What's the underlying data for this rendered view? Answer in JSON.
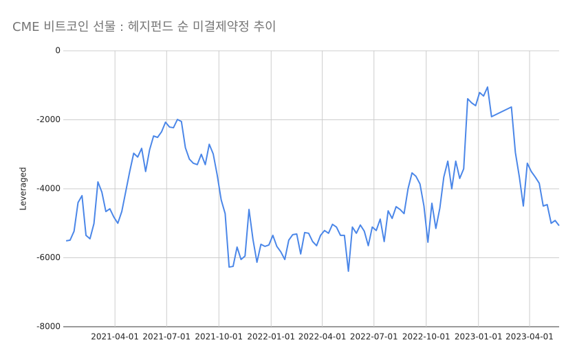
{
  "chart_data": {
    "type": "line",
    "title": "CME 비트코인 선물 : 헤지펀드 순 미결제약정 추이",
    "y_label": "Leveraged",
    "x": [
      "2021-01-05",
      "2021-01-12",
      "2021-01-19",
      "2021-01-26",
      "2021-02-02",
      "2021-02-09",
      "2021-02-16",
      "2021-02-23",
      "2021-03-02",
      "2021-03-09",
      "2021-03-16",
      "2021-03-23",
      "2021-03-30",
      "2021-04-06",
      "2021-04-13",
      "2021-04-20",
      "2021-04-27",
      "2021-05-04",
      "2021-05-11",
      "2021-05-18",
      "2021-05-25",
      "2021-06-01",
      "2021-06-08",
      "2021-06-15",
      "2021-06-22",
      "2021-06-29",
      "2021-07-06",
      "2021-07-13",
      "2021-07-20",
      "2021-07-27",
      "2021-08-03",
      "2021-08-10",
      "2021-08-17",
      "2021-08-24",
      "2021-08-31",
      "2021-09-07",
      "2021-09-14",
      "2021-09-21",
      "2021-09-28",
      "2021-10-05",
      "2021-10-12",
      "2021-10-19",
      "2021-10-26",
      "2021-11-02",
      "2021-11-09",
      "2021-11-16",
      "2021-11-23",
      "2021-11-30",
      "2021-12-07",
      "2021-12-14",
      "2021-12-21",
      "2021-12-28",
      "2022-01-04",
      "2022-01-11",
      "2022-01-18",
      "2022-01-25",
      "2022-02-01",
      "2022-02-08",
      "2022-02-15",
      "2022-02-22",
      "2022-03-01",
      "2022-03-08",
      "2022-03-15",
      "2022-03-22",
      "2022-03-29",
      "2022-04-05",
      "2022-04-12",
      "2022-04-19",
      "2022-04-26",
      "2022-05-03",
      "2022-05-10",
      "2022-05-17",
      "2022-05-24",
      "2022-05-31",
      "2022-06-07",
      "2022-06-14",
      "2022-06-21",
      "2022-06-28",
      "2022-07-05",
      "2022-07-12",
      "2022-07-19",
      "2022-07-26",
      "2022-08-02",
      "2022-08-09",
      "2022-08-16",
      "2022-08-23",
      "2022-08-30",
      "2022-09-06",
      "2022-09-13",
      "2022-09-20",
      "2022-09-27",
      "2022-10-04",
      "2022-10-11",
      "2022-10-18",
      "2022-10-25",
      "2022-11-01",
      "2022-11-08",
      "2022-11-15",
      "2022-11-22",
      "2022-11-29",
      "2022-12-06",
      "2022-12-13",
      "2022-12-20",
      "2022-12-27",
      "2023-01-03",
      "2023-01-10",
      "2023-01-17",
      "2023-01-24",
      "2023-02-28",
      "2023-03-07",
      "2023-03-14",
      "2023-03-21",
      "2023-03-28",
      "2023-04-04",
      "2023-04-11",
      "2023-04-18",
      "2023-04-25",
      "2023-05-02",
      "2023-05-09",
      "2023-05-16",
      "2023-05-23"
    ],
    "series": [
      {
        "name": "Leveraged",
        "color": "#4a86e8",
        "values": [
          -5510,
          -5490,
          -5230,
          -4400,
          -4200,
          -5350,
          -5450,
          -5010,
          -3800,
          -4100,
          -4660,
          -4580,
          -4820,
          -5000,
          -4660,
          -4080,
          -3500,
          -2970,
          -3080,
          -2830,
          -3500,
          -2870,
          -2470,
          -2510,
          -2350,
          -2070,
          -2210,
          -2230,
          -1990,
          -2050,
          -2810,
          -3140,
          -3260,
          -3300,
          -3000,
          -3300,
          -2710,
          -2990,
          -3600,
          -4320,
          -4720,
          -6270,
          -6250,
          -5690,
          -6050,
          -5950,
          -4600,
          -5470,
          -6130,
          -5610,
          -5670,
          -5630,
          -5350,
          -5670,
          -5830,
          -6050,
          -5490,
          -5330,
          -5310,
          -5890,
          -5270,
          -5290,
          -5530,
          -5650,
          -5350,
          -5210,
          -5290,
          -5030,
          -5110,
          -5350,
          -5350,
          -6390,
          -5110,
          -5290,
          -5050,
          -5230,
          -5650,
          -5110,
          -5210,
          -4880,
          -5530,
          -4640,
          -4860,
          -4520,
          -4600,
          -4720,
          -4000,
          -3540,
          -3640,
          -3860,
          -4500,
          -5550,
          -4420,
          -5150,
          -4560,
          -3660,
          -3200,
          -4000,
          -3200,
          -3700,
          -3420,
          -1390,
          -1510,
          -1590,
          -1210,
          -1310,
          -1050,
          -1910,
          -1630,
          -2950,
          -3660,
          -4500,
          -3260,
          -3500,
          -3660,
          -3840,
          -4500,
          -4460,
          -5000,
          -4920,
          -5070
        ]
      }
    ],
    "xlim": [
      "2020-12-31",
      "2023-05-23"
    ],
    "xticks": [
      "2021-04-01",
      "2021-07-01",
      "2021-10-01",
      "2022-01-01",
      "2022-04-01",
      "2022-07-01",
      "2022-10-01",
      "2023-01-01",
      "2023-04-01"
    ],
    "ylim": [
      -8000,
      0
    ],
    "yticks": [
      0,
      -2000,
      -4000,
      -6000,
      -8000
    ],
    "grid": true
  }
}
